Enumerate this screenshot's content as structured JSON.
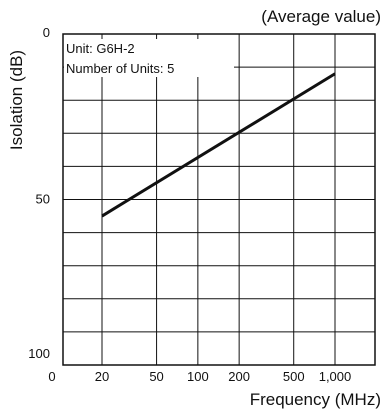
{
  "chart_data": {
    "type": "line",
    "title": "(Average value)",
    "xlabel": "Frequency (MHz)",
    "ylabel": "Isolation  (dB)",
    "x_scale": "log",
    "y_inverted": true,
    "ylim": [
      0,
      100
    ],
    "grid": true,
    "annotations": [
      "Unit: G6H-2",
      "Number of Units: 5"
    ],
    "x_ticks": [
      {
        "value": 0,
        "label": "0"
      },
      {
        "value": 20,
        "label": "20"
      },
      {
        "value": 50,
        "label": "50"
      },
      {
        "value": 100,
        "label": "100"
      },
      {
        "value": 200,
        "label": "200"
      },
      {
        "value": 500,
        "label": "500"
      },
      {
        "value": 1000,
        "label": "1,000"
      }
    ],
    "y_ticks": [
      {
        "value": 0,
        "label": "0"
      },
      {
        "value": 50,
        "label": "50"
      },
      {
        "value": 100,
        "label": "100"
      }
    ],
    "series": [
      {
        "x": [
          20,
          1000
        ],
        "y": [
          55,
          12
        ],
        "color": "#111111"
      }
    ]
  }
}
